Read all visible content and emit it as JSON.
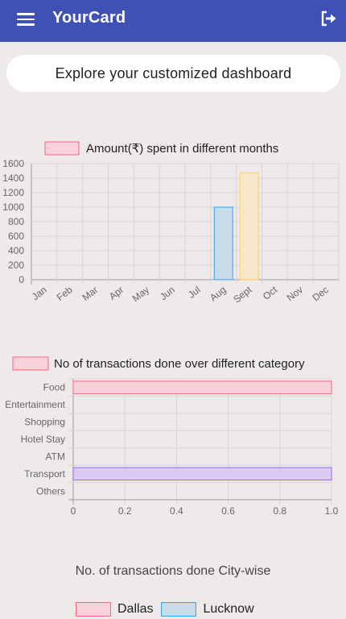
{
  "appbar": {
    "title": "YourCard",
    "menu_icon": "menu-icon",
    "logout_icon": "logout-icon"
  },
  "banner": {
    "text": "Explore your customized dashboard"
  },
  "colors": {
    "appbar": "#3f51b5",
    "pink_fill": "#f7d3d9",
    "pink_border": "#ff6384",
    "blue_fill": "#c7dbe9",
    "blue_border": "#36a2eb",
    "yellow_fill": "#f7e6c7",
    "yellow_border": "#ffce56",
    "purple_fill": "#dbcbf3",
    "purple_border": "#9966ff"
  },
  "chart_data": [
    {
      "type": "bar",
      "legend": "Amount(₹) spent in different months",
      "categories": [
        "Jan",
        "Feb",
        "Mar",
        "Apr",
        "May",
        "Jun",
        "Jul",
        "Aug",
        "Sept",
        "Oct",
        "Nov",
        "Dec"
      ],
      "values": [
        0,
        0,
        0,
        0,
        0,
        0,
        0,
        1000,
        1470,
        0,
        0,
        0
      ],
      "yticks": [
        "1600",
        "1400",
        "1200",
        "1000",
        "800",
        "600",
        "400",
        "200",
        "0"
      ],
      "ylim": [
        0,
        1600
      ]
    },
    {
      "type": "bar",
      "orientation": "horizontal",
      "legend": "No of transactions done over different category",
      "categories": [
        "Food",
        "Entertainment",
        "Shopping",
        "Hotel Stay",
        "ATM",
        "Transport",
        "Others"
      ],
      "values": [
        1,
        0,
        0,
        0,
        0,
        1,
        0
      ],
      "xticks": [
        "0",
        "0.2",
        "0.4",
        "0.6",
        "0.8",
        "1.0"
      ],
      "xlim": [
        0,
        1
      ]
    },
    {
      "type": "pie",
      "title": "No. of transactions done City-wise",
      "legend": [
        "Dallas",
        "Lucknow"
      ]
    }
  ]
}
